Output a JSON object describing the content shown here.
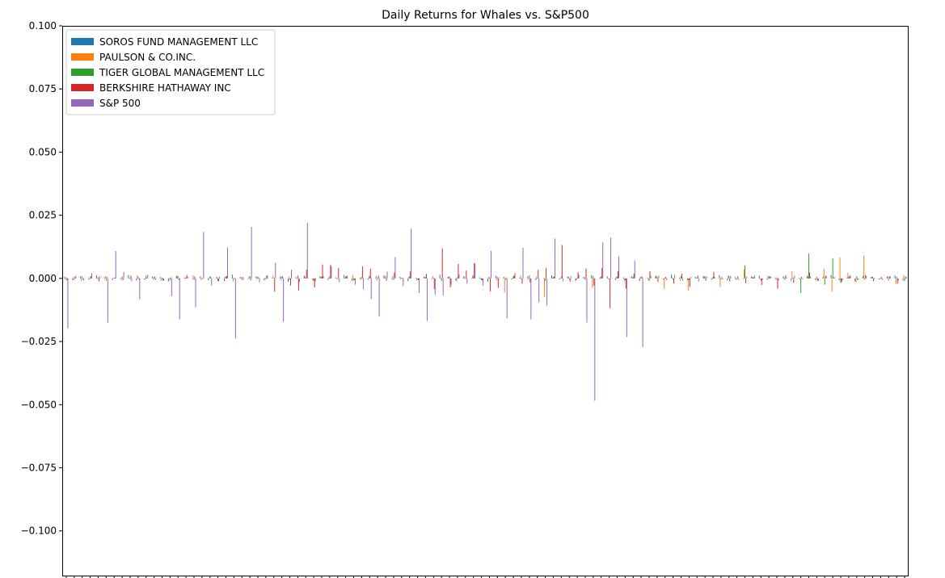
{
  "chart_data": {
    "type": "bar",
    "title": "Daily Returns for Whales vs. S&P500",
    "xlabel": "",
    "ylabel": "",
    "ylim": [
      -0.118,
      0.1
    ],
    "yticks": [
      0.1,
      0.075,
      0.05,
      0.025,
      0.0,
      -0.025,
      -0.05,
      -0.075,
      -0.1
    ],
    "ytick_labels": [
      "0.100",
      "0.075",
      "0.050",
      "0.025",
      "0.000",
      "−0.025",
      "−0.050",
      "−0.075",
      "−0.100"
    ],
    "grid": false,
    "legend_position": "upper-left",
    "series": [
      {
        "name": "SOROS FUND MANAGEMENT LLC",
        "color": "#1f77b4",
        "values": [
          0.0006,
          -0.0008,
          0.0009,
          -0.0005,
          0.0012,
          0.0004,
          -0.0006,
          0.0002,
          0.0013,
          -0.0009,
          -0.0004,
          0.0007,
          0.0005,
          -0.0012,
          0.0011,
          0.0003,
          -0.0002,
          0.0008,
          -0.0007,
          0.0004,
          -0.0011,
          0.0015,
          0.0006,
          -0.0003,
          0.0009,
          -0.0008,
          0.0002,
          0.0007,
          -0.0014,
          0.0005,
          0.0011,
          -0.0002,
          0.0009,
          -0.0006,
          0.0004,
          0.0013,
          -0.0009,
          0.0003,
          -0.0005,
          0.0008,
          0.0012,
          -0.0004,
          0.0006,
          -0.0011,
          0.0002,
          0.0007,
          -0.0003,
          0.0014,
          0.0005,
          -0.0008,
          0.0009,
          -0.0002,
          0.0004,
          -0.0013,
          0.0011,
          0.0006,
          -0.0005,
          0.0003,
          0.0008,
          -0.0007,
          0.0002,
          0.0012,
          -0.0004,
          0.0006,
          -0.0009,
          0.0005,
          0.0013,
          -0.0003,
          0.0007,
          -0.0006,
          0.0004,
          0.0009,
          -0.0011,
          0.0002,
          0.0008,
          -0.0005,
          0.0015,
          0.0003,
          -0.0007,
          0.0006,
          0.0009,
          -0.0004,
          0.0012,
          -0.0008,
          0.0005,
          -0.0002,
          0.0007,
          0.0011,
          -0.0006,
          0.0003,
          0.0008,
          -0.0009,
          0.0002,
          0.001,
          -0.0004,
          0.0006,
          0.0013,
          -0.0007,
          0.0004,
          -0.0012,
          0.0009,
          0.0005,
          -0.0003,
          0.0007,
          0.0011,
          -0.0008
        ]
      },
      {
        "name": "PAULSON & CO.INC.",
        "color": "#ff7f0e",
        "values": [
          -0.0005,
          0.0007,
          -0.0011,
          0.0006,
          -0.0003,
          0.0009,
          0.0004,
          -0.0008,
          0.0002,
          0.0012,
          -0.0006,
          0.0005,
          -0.0009,
          0.0003,
          0.0008,
          -0.0004,
          0.0011,
          -0.0007,
          0.0002,
          0.0006,
          0.0009,
          -0.0012,
          0.0004,
          0.0007,
          -0.0005,
          0.0003,
          0.0013,
          -0.0008,
          0.0006,
          -0.0002,
          0.0009,
          -0.0011,
          0.0005,
          0.0008,
          -0.0004,
          0.0002,
          0.0012,
          -0.0006,
          0.0007,
          -0.0009,
          0.0003,
          0.0011,
          -0.0005,
          0.0006,
          -0.0008,
          0.0004,
          0.0009,
          -0.0002,
          0.0007,
          -0.0012,
          0.0005,
          0.0013,
          -0.0004,
          0.0006,
          -0.0009,
          -0.0055,
          0.0003,
          0.0011,
          -0.0006,
          0.0008,
          -0.0073,
          0.0004,
          -0.0002,
          0.0009,
          -0.0007,
          0.0005,
          -0.0038,
          0.0006,
          -0.0004,
          0.0008,
          -0.0011,
          0.0003,
          0.0007,
          -0.0006,
          0.0012,
          -0.0042,
          0.0005,
          -0.0009,
          -0.0048,
          0.0004,
          0.0008,
          -0.0005,
          -0.0033,
          0.0009,
          -0.0007,
          0.0035,
          0.0006,
          -0.0003,
          0.0011,
          -0.0008,
          0.0005,
          0.0028,
          -0.0004,
          0.0007,
          -0.0009,
          0.0038,
          -0.0052,
          0.0083,
          0.0022,
          -0.0015,
          0.0091,
          0.0006,
          -0.0004,
          0.0009,
          -0.0023,
          0.0012
        ]
      },
      {
        "name": "TIGER GLOBAL MANAGEMENT LLC",
        "color": "#2ca02c",
        "values": [
          0.0004,
          -0.0006,
          0.0008,
          -0.0003,
          0.0005,
          -0.0009,
          0.0002,
          0.0007,
          -0.0004,
          0.0006,
          0.0011,
          -0.0005,
          0.0003,
          -0.0008,
          0.0009,
          0.0004,
          -0.0006,
          0.0002,
          0.0008,
          -0.0011,
          0.0005,
          0.0003,
          -0.0007,
          0.0009,
          0.0006,
          -0.0004,
          0.0002,
          0.0008,
          -0.0005,
          0.0012,
          0.0003,
          -0.0009,
          0.0006,
          0.0004,
          -0.0002,
          0.0007,
          -0.0008,
          0.0005,
          0.0011,
          -0.0003,
          0.0009,
          -0.0006,
          0.0002,
          0.0008,
          -0.0004,
          0.0006,
          0.0003,
          -0.0011,
          0.0007,
          0.0005,
          -0.0002,
          0.0009,
          -0.0007,
          0.0004,
          0.0006,
          -0.0005,
          0.0008,
          -0.0003,
          0.0012,
          0.0002,
          -0.0009,
          0.0005,
          0.0007,
          -0.0004,
          0.0003,
          -0.0006,
          0.0009,
          0.0008,
          -0.0002,
          0.0005,
          -0.0008,
          0.0006,
          0.0004,
          -0.0011,
          0.0007,
          0.0003,
          -0.0005,
          0.0009,
          -0.0007,
          0.0002,
          0.0008,
          0.0006,
          -0.0004,
          0.0011,
          -0.0003,
          0.0051,
          0.0005,
          -0.0009,
          0.0007,
          0.0004,
          -0.0006,
          0.0003,
          -0.0058,
          0.0098,
          0.0006,
          -0.0025,
          0.0079,
          -0.0018,
          0.0004,
          0.0009,
          -0.0005,
          0.0007,
          0.0002,
          -0.0008,
          0.0006,
          -0.0011
        ]
      },
      {
        "name": "BERKSHIRE HATHAWAY INC",
        "color": "#d62728",
        "values": [
          -0.0008,
          0.0005,
          -0.0004,
          0.0009,
          -0.0012,
          0.0006,
          0.0003,
          -0.0007,
          0.0011,
          -0.0005,
          0.0002,
          0.0008,
          -0.0009,
          0.0004,
          -0.0006,
          0.0013,
          0.0007,
          -0.0003,
          0.0005,
          -0.0011,
          0.0009,
          -0.0002,
          0.0006,
          -0.0008,
          0.0004,
          0.0011,
          -0.0052,
          0.0007,
          -0.0028,
          -0.0048,
          0.0034,
          -0.0036,
          0.0055,
          0.0053,
          0.0042,
          0.0009,
          -0.0006,
          0.0047,
          0.0038,
          0.0011,
          -0.0009,
          0.0023,
          0.0003,
          0.0028,
          -0.0007,
          0.0018,
          -0.0042,
          0.0119,
          -0.0035,
          0.0058,
          0.0031,
          0.0061,
          -0.0008,
          -0.0052,
          -0.0038,
          0.0004,
          0.0012,
          -0.0021,
          -0.0016,
          0.0033,
          0.0041,
          0.0007,
          0.0132,
          -0.0013,
          0.0024,
          0.0039,
          -0.0029,
          0.0041,
          -0.0118,
          0.0028,
          -0.0041,
          0.0019,
          0.0008,
          0.0029,
          -0.0014,
          0.0006,
          -0.0021,
          0.0018,
          -0.0033,
          0.0011,
          -0.0009,
          0.0025,
          0.0005,
          -0.0012,
          0.0008,
          -0.0019,
          0.0004,
          -0.0026,
          0.0007,
          -0.0041,
          0.0012,
          -0.0018,
          0.0006,
          0.0023,
          -0.0009,
          0.0011,
          0.0004,
          -0.0015,
          0.0009,
          -0.0007,
          0.0013,
          -0.0011,
          0.0005,
          0.0008,
          -0.0021,
          0.0006
        ]
      },
      {
        "name": "S&P 500",
        "color": "#9467bd",
        "values": [
          -0.0198,
          0.0011,
          -0.0009,
          0.0021,
          0.0008,
          -0.0176,
          0.0108,
          0.0025,
          -0.0012,
          -0.0083,
          0.0014,
          -0.0006,
          -0.0009,
          -0.0071,
          -0.0162,
          0.0006,
          -0.0115,
          0.0184,
          -0.0028,
          0.0007,
          0.0122,
          -0.0238,
          -0.0005,
          0.0204,
          -0.0016,
          0.0012,
          0.0062,
          -0.0171,
          0.0034,
          -0.0016,
          0.0221,
          -0.0012,
          0.0009,
          0.0048,
          -0.0015,
          0.0011,
          -0.0025,
          -0.0043,
          -0.0082,
          -0.0151,
          0.0027,
          0.0084,
          -0.0031,
          0.0197,
          -0.0058,
          -0.0168,
          -0.0065,
          -0.0068,
          -0.0025,
          0.0015,
          -0.0021,
          0.0058,
          -0.0029,
          0.0109,
          0.0005,
          -0.0158,
          0.0022,
          0.0121,
          -0.0162,
          -0.0095,
          -0.0107,
          0.0158,
          -0.0012,
          0.0009,
          0.0014,
          -0.0175,
          -0.0485,
          0.0143,
          0.0162,
          0.0087,
          -0.0232,
          0.0071,
          -0.0272,
          0.0009,
          0.0011,
          -0.0007,
          0.0014,
          -0.0009,
          0.0006,
          -0.0012,
          0.0008,
          0.0005,
          -0.0004,
          0.001,
          -0.0006,
          0.0007,
          0.0012,
          -0.0005,
          0.0009,
          -0.0008,
          0.0004,
          0.0011,
          -0.0003,
          0.0006,
          -0.001,
          0.0008,
          0.0005,
          -0.0007,
          0.0012,
          -0.0004,
          0.0009,
          0.0003,
          -0.0006,
          0.0008,
          -0.0011,
          0.0005
        ]
      }
    ]
  }
}
